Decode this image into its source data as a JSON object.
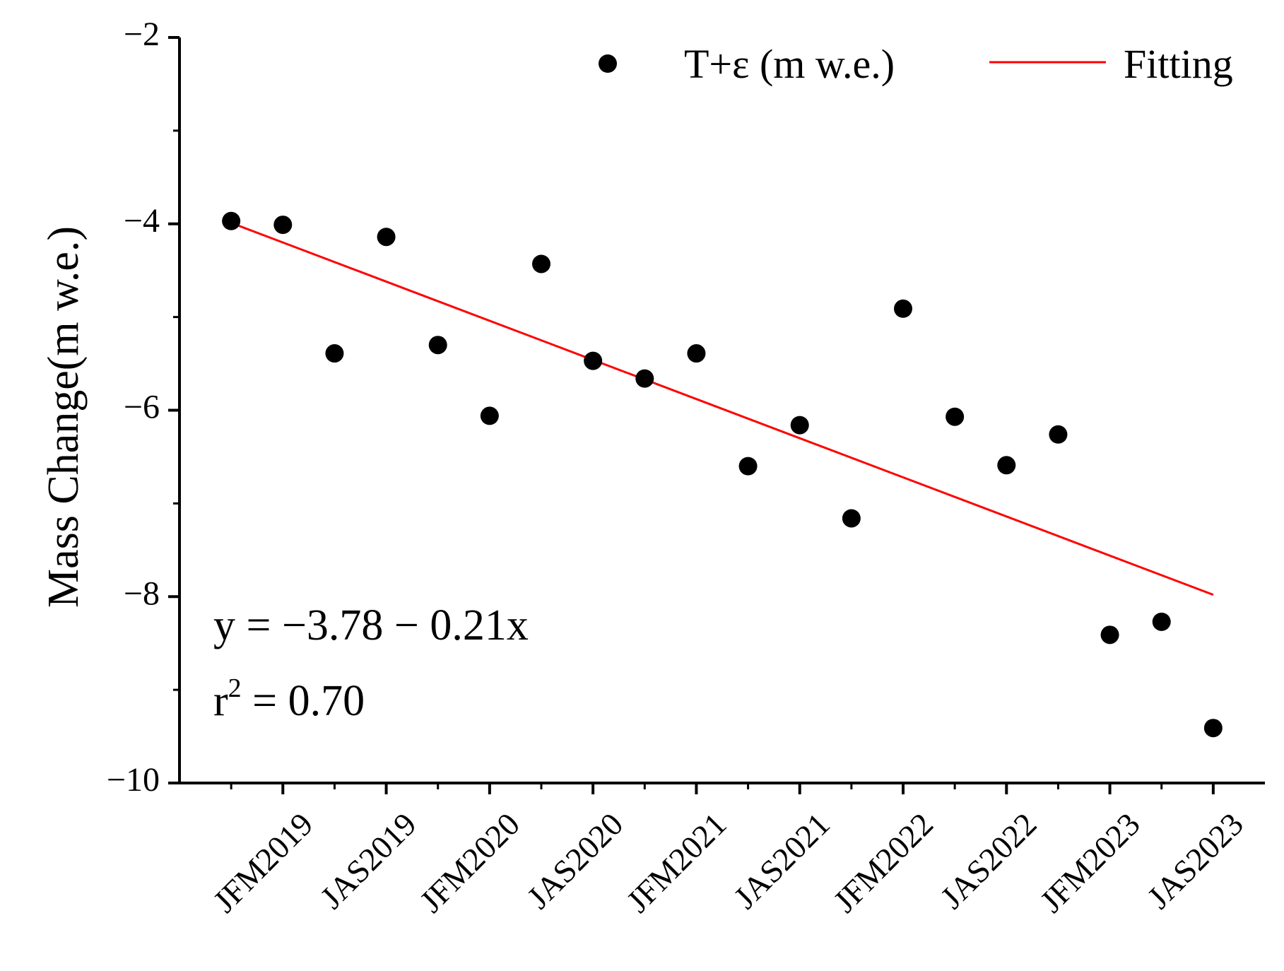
{
  "chart_data": {
    "type": "scatter",
    "title": "",
    "xlabel": "",
    "ylabel": "Mass Change(m w.e.)",
    "ylim": [
      -10,
      -2
    ],
    "yticks": [
      -10,
      -8,
      -6,
      -4,
      -2
    ],
    "ytick_labels": [
      "−10",
      "−8",
      "−6",
      "−4",
      "−2"
    ],
    "x_categories": [
      "JFM2019",
      "JAS2019",
      "JFM2020",
      "JAS2020",
      "JFM2021",
      "JAS2021",
      "JFM2022",
      "JAS2022",
      "JFM2023",
      "JAS2023"
    ],
    "x_label_positions": [
      2,
      4,
      6,
      8,
      10,
      12,
      14,
      16,
      18,
      20
    ],
    "xlim": [
      0,
      21
    ],
    "series": [
      {
        "name": "T+ε (m w.e.)",
        "kind": "scatter",
        "color": "#000000",
        "x": [
          1,
          2,
          3,
          4,
          5,
          6,
          7,
          8,
          9,
          10,
          11,
          12,
          13,
          14,
          15,
          16,
          17,
          18,
          19,
          20
        ],
        "y": [
          -3.97,
          -4.01,
          -5.39,
          -4.14,
          -5.3,
          -6.06,
          -4.43,
          -5.47,
          -5.66,
          -5.39,
          -6.6,
          -6.16,
          -7.16,
          -4.91,
          -6.07,
          -6.59,
          -6.26,
          -8.41,
          -8.27,
          -9.41
        ]
      },
      {
        "name": "Fitting",
        "kind": "line",
        "color": "#ff0000",
        "x": [
          1,
          20
        ],
        "y": [
          -3.99,
          -7.98
        ]
      }
    ],
    "legend": {
      "position": "top-right",
      "entries": [
        "T+ε (m w.e.)",
        "Fitting"
      ]
    },
    "annotations": {
      "equation": "y = −3.78 − 0.21x",
      "r2_prefix": "r",
      "r2_sup": "2",
      "r2_rest": " = 0.70"
    }
  }
}
